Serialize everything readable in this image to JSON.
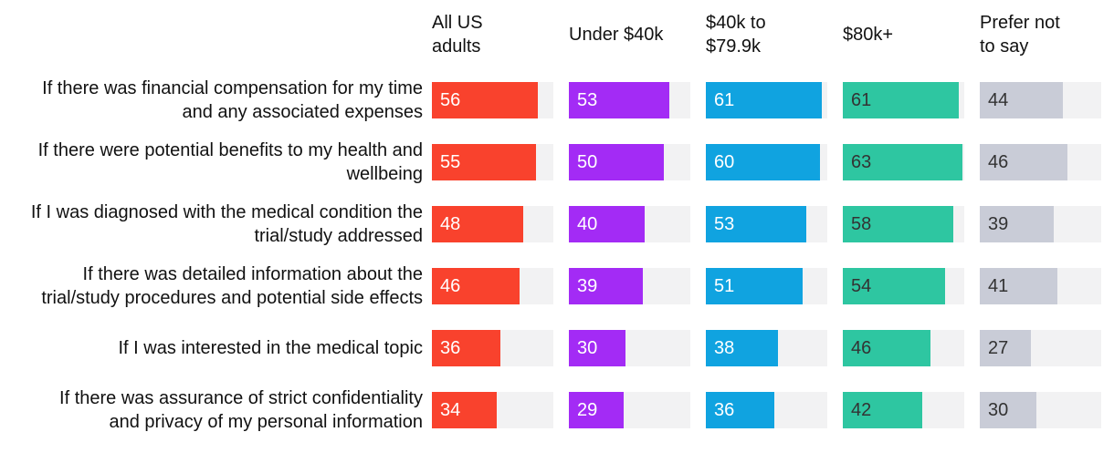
{
  "chart_data": {
    "type": "bar",
    "orientation": "horizontal",
    "xmax": 64,
    "track_color": "#f2f2f3",
    "grid": false,
    "legend_position": "column-headers-top",
    "columns": [
      {
        "label": "All US adults",
        "color": "#f9422d",
        "text_color": "#ffffff"
      },
      {
        "label": "Under $40k",
        "color": "#a32bf5",
        "text_color": "#ffffff"
      },
      {
        "label": "$40k to $79.9k",
        "color": "#10a3e0",
        "text_color": "#ffffff"
      },
      {
        "label": "$80k+",
        "color": "#2ec6a1",
        "text_color": "#333333"
      },
      {
        "label": "Prefer not to say",
        "color": "#c9ccd7",
        "text_color": "#333333"
      }
    ],
    "rows": [
      {
        "label": "If there was financial compensation for my time and any associated expenses",
        "values": [
          56,
          53,
          61,
          61,
          44
        ]
      },
      {
        "label": "If there were potential benefits to my health and wellbeing",
        "values": [
          55,
          50,
          60,
          63,
          46
        ]
      },
      {
        "label": "If I was diagnosed with the medical condition the trial/study addressed",
        "values": [
          48,
          40,
          53,
          58,
          39
        ]
      },
      {
        "label": "If there was detailed information about the trial/study procedures and potential side effects",
        "values": [
          46,
          39,
          51,
          54,
          41
        ]
      },
      {
        "label": "If I was interested in the medical topic",
        "values": [
          36,
          30,
          38,
          46,
          27
        ]
      },
      {
        "label": "If there was assurance of strict confidentiality and privacy of my personal information",
        "values": [
          34,
          29,
          36,
          42,
          30
        ]
      }
    ]
  }
}
